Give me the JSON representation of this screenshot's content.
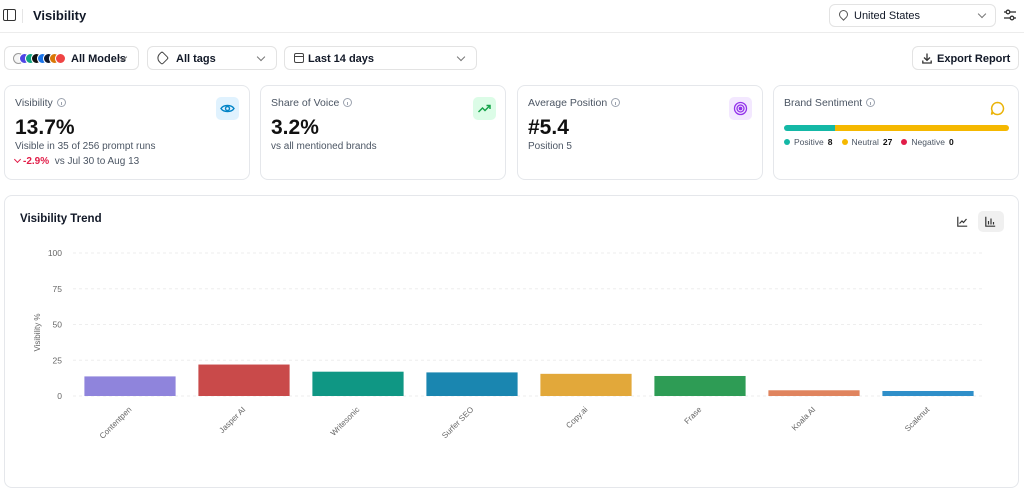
{
  "header": {
    "title": "Visibility",
    "country": "United States"
  },
  "filters": {
    "models_label": "All Models",
    "model_logo_colors": [
      "#f5f5f5",
      "#4f46e5",
      "#10a37f",
      "#111111",
      "#1a73e8",
      "#0f172a",
      "#d97706",
      "#ef4444"
    ],
    "tags_label": "All tags",
    "date_label": "Last 14 days",
    "export_label": "Export Report"
  },
  "cards": {
    "visibility": {
      "title": "Visibility",
      "value": "13.7%",
      "sub": "Visible in 35 of 256 prompt runs",
      "change": "-2.9%",
      "change_context": "vs Jul 30 to Aug 13"
    },
    "share_of_voice": {
      "title": "Share of Voice",
      "value": "3.2%",
      "sub": "vs all mentioned brands"
    },
    "average_position": {
      "title": "Average Position",
      "value": "#5.4",
      "sub": "Position 5"
    },
    "brand_sentiment": {
      "title": "Brand Sentiment",
      "positive_label": "Positive",
      "positive_count": "8",
      "neutral_label": "Neutral",
      "neutral_count": "27",
      "negative_label": "Negative",
      "negative_count": "0"
    }
  },
  "colors": {
    "positive": "#14b8a6",
    "neutral": "#f5b800",
    "negative": "#e11d48"
  },
  "chart": {
    "title": "Visibility Trend"
  },
  "chart_data": {
    "type": "bar",
    "title": "Visibility Trend",
    "ylabel": "Visibility %",
    "xlabel": "",
    "ylim": [
      0,
      100
    ],
    "yticks": [
      0,
      25,
      50,
      75,
      100
    ],
    "grid": true,
    "categories": [
      "Contentpen",
      "Jasper AI",
      "Writesonic",
      "Surfer SEO",
      "Copy.ai",
      "Frase",
      "Koala AI",
      "Scalenut"
    ],
    "values": [
      13.7,
      22,
      17,
      16.5,
      15.5,
      14,
      4,
      3.5
    ],
    "colors": [
      "#8f84dc",
      "#c94a4a",
      "#0f9784",
      "#1a86b0",
      "#e2a83a",
      "#2e9c55",
      "#e0845e",
      "#2f8fc9"
    ]
  }
}
